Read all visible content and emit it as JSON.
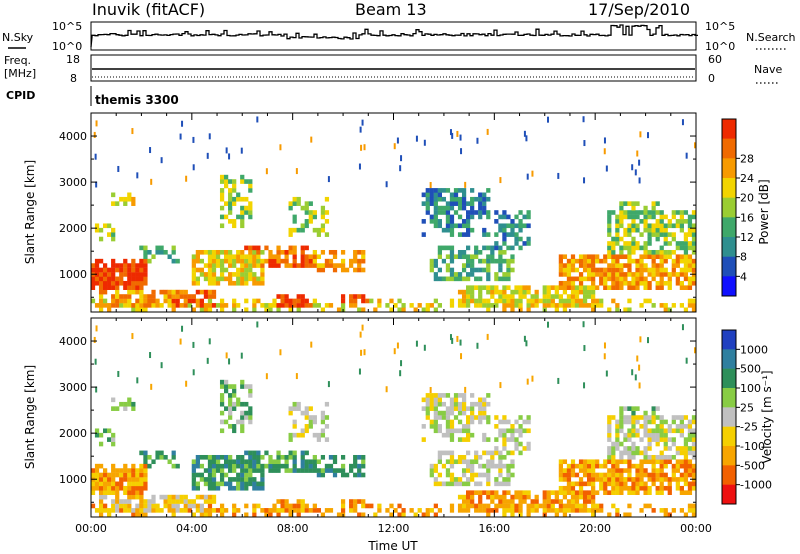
{
  "header": {
    "station": "Inuvik (fitACF)",
    "beam": "Beam 13",
    "date": "17/Sep/2010"
  },
  "summary_panels": {
    "nsky": {
      "label": "N.Sky",
      "right_label": "N.Search",
      "left_ticks": [
        "10^5",
        "10^0"
      ],
      "right_ticks": [
        "10^5",
        "10^0"
      ]
    },
    "freq": {
      "label_line1": "Freq.",
      "label_line2": "[MHz]",
      "right_label": "Nave",
      "left_ticks": [
        "18",
        "8"
      ],
      "right_ticks": [
        "60",
        "0"
      ]
    },
    "cpid": {
      "label": "CPID",
      "value": "themis 3300"
    }
  },
  "legend_colors": {
    "power": [
      "#1010ff",
      "#1f4fb8",
      "#2f8f8f",
      "#3fa86a",
      "#9acd32",
      "#f2d400",
      "#f79a00",
      "#f06a00",
      "#ee2a00"
    ],
    "velocity": [
      "#ee1010",
      "#f26000",
      "#f7a500",
      "#f5cf00",
      "#c0c0c0",
      "#88cc44",
      "#2e8f5a",
      "#2f7f9f",
      "#2040c0"
    ]
  },
  "chart_data": [
    {
      "type": "heatmap",
      "title": "",
      "xlabel": "Time UT",
      "ylabel": "Slant Range [km]",
      "x_ticks": [
        "00:00",
        "04:00",
        "08:00",
        "12:00",
        "16:00",
        "20:00",
        "00:00"
      ],
      "y_ticks": [
        1000,
        2000,
        3000,
        4000
      ],
      "xlim_hours": [
        0,
        24
      ],
      "ylim_km": [
        180,
        4500
      ],
      "colorbar": {
        "label": "Power [dB]",
        "ticks": [
          "4",
          "8",
          "12",
          "16",
          "20",
          "24",
          "28"
        ]
      }
    },
    {
      "type": "heatmap",
      "title": "",
      "xlabel": "Time UT",
      "ylabel": "Slant Range [km]",
      "x_ticks": [
        "00:00",
        "04:00",
        "08:00",
        "12:00",
        "16:00",
        "20:00",
        "00:00"
      ],
      "y_ticks": [
        1000,
        2000,
        3000,
        4000
      ],
      "xlim_hours": [
        0,
        24
      ],
      "ylim_km": [
        180,
        4500
      ],
      "colorbar": {
        "label": "Velocity [m s⁻¹]",
        "ticks": [
          "1000",
          "500",
          "100",
          "25",
          "-25",
          "-100",
          "-500",
          "-1000"
        ]
      }
    }
  ]
}
